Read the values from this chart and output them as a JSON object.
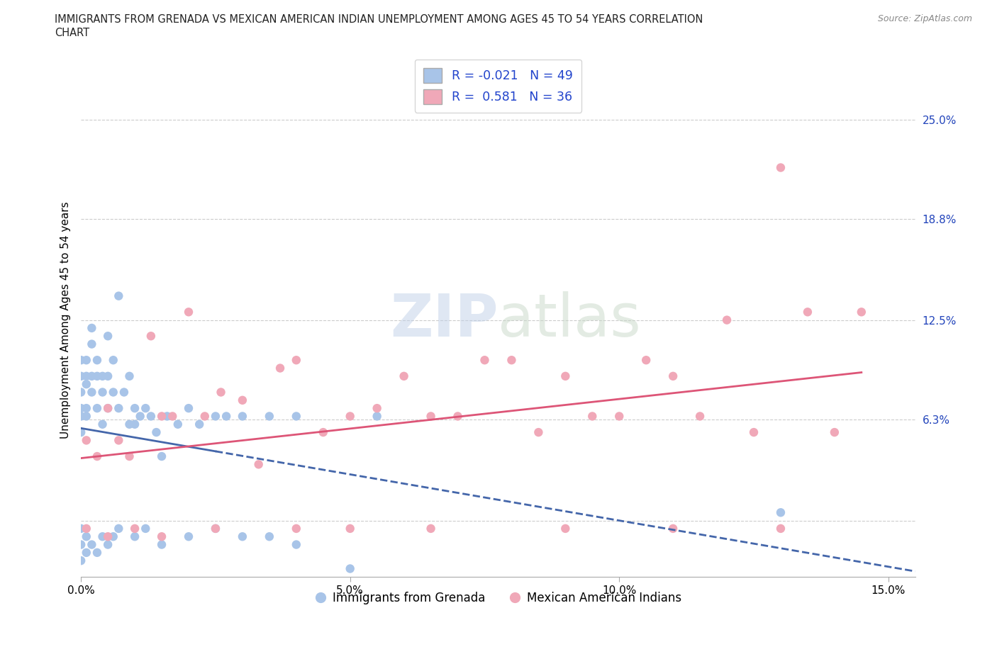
{
  "title_line1": "IMMIGRANTS FROM GRENADA VS MEXICAN AMERICAN INDIAN UNEMPLOYMENT AMONG AGES 45 TO 54 YEARS CORRELATION",
  "title_line2": "CHART",
  "source": "Source: ZipAtlas.com",
  "ylabel_label": "Unemployment Among Ages 45 to 54 years",
  "xlim": [
    0.0,
    0.155
  ],
  "ylim": [
    -0.035,
    0.285
  ],
  "xtick_vals": [
    0.0,
    0.05,
    0.1,
    0.15
  ],
  "xtick_labels": [
    "0.0%",
    "5.0%",
    "10.0%",
    "15.0%"
  ],
  "ytick_grid_vals": [
    0.0,
    0.063,
    0.125,
    0.188,
    0.25
  ],
  "right_ytick_vals": [
    0.063,
    0.125,
    0.188,
    0.25
  ],
  "right_ytick_labels": [
    "6.3%",
    "12.5%",
    "18.8%",
    "25.0%"
  ],
  "grenada_color": "#a8c4e8",
  "mexican_color": "#f0a8b8",
  "grenada_line_color": "#4466aa",
  "mexican_line_color": "#dd5577",
  "legend_text_color": "#2244cc",
  "background_color": "#ffffff",
  "grid_color": "#cccccc",
  "R_grenada": -0.021,
  "N_grenada": 49,
  "R_mexican": 0.581,
  "N_mexican": 36,
  "grenada_scatter_x": [
    0.0,
    0.0,
    0.0,
    0.0,
    0.0,
    0.0,
    0.001,
    0.001,
    0.001,
    0.001,
    0.001,
    0.002,
    0.002,
    0.002,
    0.002,
    0.003,
    0.003,
    0.003,
    0.004,
    0.004,
    0.004,
    0.005,
    0.005,
    0.005,
    0.006,
    0.006,
    0.007,
    0.007,
    0.008,
    0.009,
    0.009,
    0.01,
    0.01,
    0.011,
    0.012,
    0.013,
    0.014,
    0.015,
    0.016,
    0.018,
    0.02,
    0.022,
    0.025,
    0.027,
    0.03,
    0.035,
    0.04,
    0.055,
    0.13
  ],
  "grenada_scatter_y": [
    0.07,
    0.08,
    0.09,
    0.1,
    0.055,
    0.065,
    0.07,
    0.09,
    0.1,
    0.085,
    0.065,
    0.11,
    0.09,
    0.12,
    0.08,
    0.1,
    0.09,
    0.07,
    0.09,
    0.08,
    0.06,
    0.115,
    0.09,
    0.07,
    0.1,
    0.08,
    0.14,
    0.07,
    0.08,
    0.09,
    0.06,
    0.06,
    0.07,
    0.065,
    0.07,
    0.065,
    0.055,
    0.04,
    0.065,
    0.06,
    0.07,
    0.06,
    0.065,
    0.065,
    0.065,
    0.065,
    0.065,
    0.065,
    0.005
  ],
  "grenada_below_x": [
    0.0,
    0.0,
    0.0,
    0.001,
    0.001,
    0.002,
    0.003,
    0.004,
    0.005,
    0.006,
    0.007,
    0.01,
    0.012,
    0.015,
    0.02,
    0.025,
    0.03,
    0.035,
    0.04,
    0.05
  ],
  "grenada_below_y": [
    -0.005,
    -0.015,
    -0.025,
    -0.01,
    -0.02,
    -0.015,
    -0.02,
    -0.01,
    -0.015,
    -0.01,
    -0.005,
    -0.01,
    -0.005,
    -0.015,
    -0.01,
    -0.005,
    -0.01,
    -0.01,
    -0.015,
    -0.03
  ],
  "mexican_scatter_x": [
    0.001,
    0.003,
    0.005,
    0.007,
    0.009,
    0.013,
    0.015,
    0.017,
    0.02,
    0.023,
    0.026,
    0.03,
    0.033,
    0.037,
    0.04,
    0.045,
    0.05,
    0.055,
    0.06,
    0.065,
    0.07,
    0.075,
    0.08,
    0.085,
    0.09,
    0.095,
    0.1,
    0.105,
    0.11,
    0.115,
    0.12,
    0.125,
    0.13,
    0.135,
    0.14,
    0.145
  ],
  "mexican_scatter_y": [
    0.05,
    0.04,
    0.07,
    0.05,
    0.04,
    0.115,
    0.065,
    0.065,
    0.13,
    0.065,
    0.08,
    0.075,
    0.035,
    0.095,
    0.1,
    0.055,
    0.065,
    0.07,
    0.09,
    0.065,
    0.065,
    0.1,
    0.1,
    0.055,
    0.09,
    0.065,
    0.065,
    0.1,
    0.09,
    0.065,
    0.125,
    0.055,
    0.22,
    0.13,
    0.055,
    0.13
  ],
  "mexican_below_x": [
    0.001,
    0.005,
    0.01,
    0.015,
    0.025,
    0.04,
    0.05,
    0.065,
    0.09,
    0.11,
    0.13
  ],
  "mexican_below_y": [
    -0.005,
    -0.01,
    -0.005,
    -0.01,
    -0.005,
    -0.005,
    -0.005,
    -0.005,
    -0.005,
    -0.005,
    -0.005
  ]
}
